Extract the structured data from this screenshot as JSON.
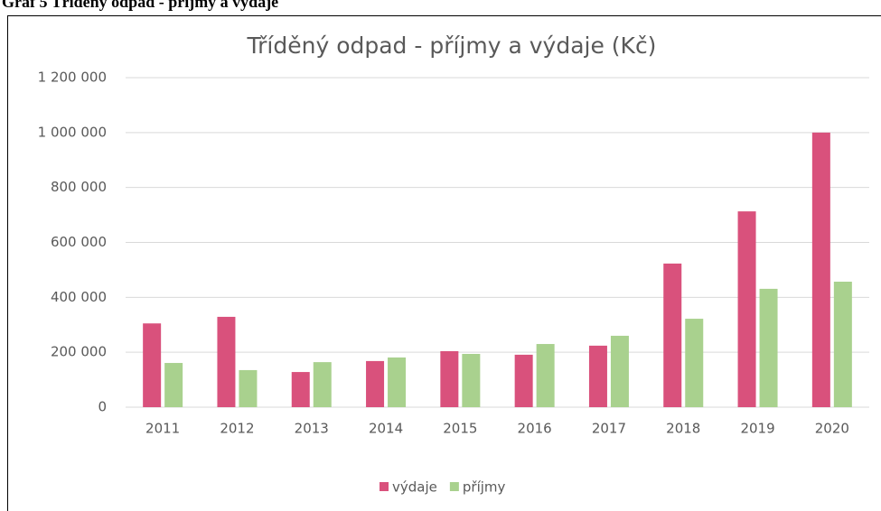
{
  "caption": "Graf 5 Tříděný odpad - příjmy a výdaje",
  "chart_data": {
    "type": "bar",
    "title": "Tříděný odpad - příjmy a výdaje (Kč)",
    "categories": [
      "2011",
      "2012",
      "2013",
      "2014",
      "2015",
      "2016",
      "2017",
      "2018",
      "2019",
      "2020"
    ],
    "series": [
      {
        "name": "výdaje",
        "color": "#d9517c",
        "values": [
          305000,
          329000,
          128000,
          168000,
          204000,
          191000,
          224000,
          523000,
          713000,
          1000000
        ]
      },
      {
        "name": "příjmy",
        "color": "#a9d18e",
        "values": [
          161000,
          135000,
          164000,
          181000,
          194000,
          230000,
          260000,
          322000,
          431000,
          457000
        ]
      }
    ],
    "ylim": [
      0,
      1200000
    ],
    "yticks": [
      0,
      {
        "value": 200000,
        "label": "200 000"
      },
      {
        "value": 400000,
        "label": "400 000"
      },
      {
        "value": 600000,
        "label": "600 000"
      },
      {
        "value": 800000,
        "label": "800 000"
      },
      {
        "value": 1000000,
        "label": "1 000 000"
      },
      {
        "value": 1200000,
        "label": "1 200 000"
      }
    ],
    "grid": true,
    "legend": "bottom"
  }
}
